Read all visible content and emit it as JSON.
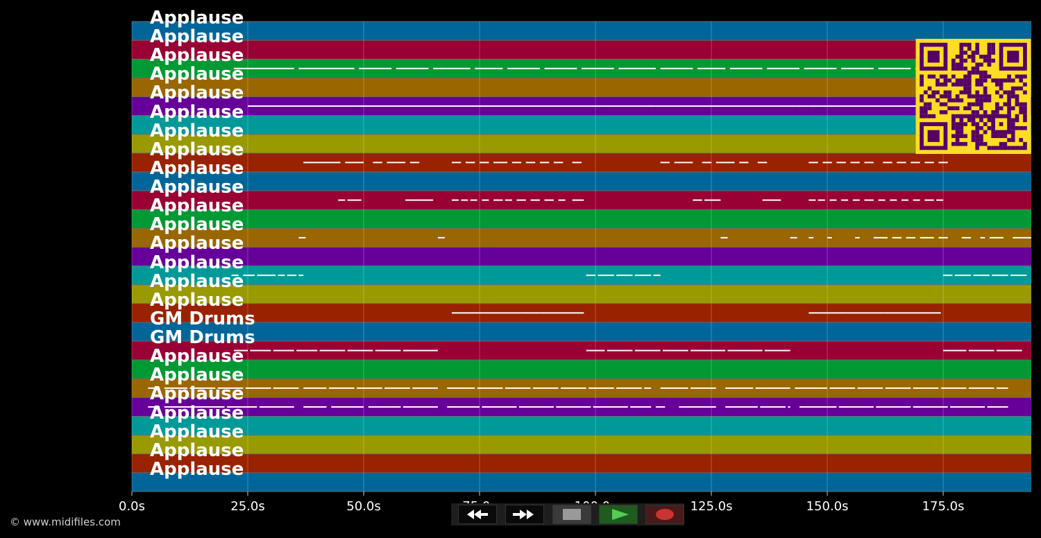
{
  "tracks": [
    {
      "label": "Applause",
      "color": "#006699"
    },
    {
      "label": "Applause",
      "color": "#990033"
    },
    {
      "label": "Applause",
      "color": "#009933"
    },
    {
      "label": "Applause",
      "color": "#996600"
    },
    {
      "label": "Applause",
      "color": "#660099"
    },
    {
      "label": "Applause",
      "color": "#009999"
    },
    {
      "label": "Applause",
      "color": "#999900"
    },
    {
      "label": "Applause",
      "color": "#992200"
    },
    {
      "label": "Applause",
      "color": "#006699"
    },
    {
      "label": "Applause",
      "color": "#990033"
    },
    {
      "label": "Applause",
      "color": "#009933"
    },
    {
      "label": "Applause",
      "color": "#996600"
    },
    {
      "label": "Applause",
      "color": "#660099"
    },
    {
      "label": "Applause",
      "color": "#009999"
    },
    {
      "label": "Applause",
      "color": "#999900"
    },
    {
      "label": "Applause",
      "color": "#992200"
    },
    {
      "label": "GM Drums",
      "color": "#006699"
    },
    {
      "label": "GM Drums",
      "color": "#990033"
    },
    {
      "label": "Applause",
      "color": "#009933"
    },
    {
      "label": "Applause",
      "color": "#996600"
    },
    {
      "label": "Applause",
      "color": "#660099"
    },
    {
      "label": "Applause",
      "color": "#009999"
    },
    {
      "label": "Applause",
      "color": "#999900"
    },
    {
      "label": "Applause",
      "color": "#992200"
    },
    {
      "label": "Applause",
      "color": "#006699"
    }
  ],
  "time_axis": {
    "max_seconds": 194,
    "ticks": [
      {
        "value": 0,
        "label": "0.0s"
      },
      {
        "value": 25,
        "label": "25.0s"
      },
      {
        "value": 50,
        "label": "50.0s"
      },
      {
        "value": 75,
        "label": "75.0s"
      },
      {
        "value": 100,
        "label": "100.0s"
      },
      {
        "value": 125,
        "label": "125.0s"
      },
      {
        "value": 150,
        "label": "150.0s"
      },
      {
        "value": 175,
        "label": "175.0s"
      }
    ]
  },
  "notes": [
    {
      "track": 2,
      "segments": [
        [
          22,
          35
        ],
        [
          36,
          41
        ],
        [
          41,
          48
        ],
        [
          49,
          56
        ],
        [
          57,
          64
        ],
        [
          65,
          73
        ],
        [
          74,
          80
        ],
        [
          81,
          88
        ],
        [
          89,
          96
        ],
        [
          97,
          104
        ],
        [
          105,
          113
        ],
        [
          114,
          121
        ],
        [
          122,
          128
        ],
        [
          129,
          136
        ],
        [
          137,
          144
        ],
        [
          145,
          152
        ],
        [
          153,
          160
        ],
        [
          161,
          168
        ],
        [
          169,
          176
        ]
      ]
    },
    {
      "track": 4,
      "segments": [
        [
          25,
          66
        ],
        [
          66,
          69
        ],
        [
          69,
          98
        ],
        [
          98,
          113
        ],
        [
          113,
          143
        ],
        [
          143,
          146
        ],
        [
          146,
          178
        ]
      ]
    },
    {
      "track": 7,
      "segments": [
        [
          37,
          39
        ],
        [
          39,
          42
        ],
        [
          42,
          45
        ],
        [
          46,
          48
        ],
        [
          48,
          50
        ],
        [
          52,
          54
        ],
        [
          55,
          57
        ],
        [
          57,
          59
        ],
        [
          60,
          62
        ],
        [
          69,
          71
        ],
        [
          72,
          74
        ],
        [
          75,
          77
        ],
        [
          78,
          81
        ],
        [
          82,
          84
        ],
        [
          85,
          87
        ],
        [
          88,
          90
        ],
        [
          91,
          93
        ],
        [
          95,
          97
        ],
        [
          114,
          116
        ],
        [
          117,
          119
        ],
        [
          119,
          121
        ],
        [
          123,
          125
        ],
        [
          126,
          128
        ],
        [
          128,
          130
        ],
        [
          131,
          133
        ],
        [
          135,
          137
        ],
        [
          146,
          148
        ],
        [
          149,
          151
        ],
        [
          152,
          154
        ],
        [
          155,
          157
        ],
        [
          158,
          160
        ],
        [
          162,
          164
        ],
        [
          165,
          167
        ],
        [
          168,
          170
        ],
        [
          171,
          173
        ],
        [
          174,
          176
        ]
      ]
    },
    {
      "track": 9,
      "segments": [
        [
          44.5,
          46
        ],
        [
          46.5,
          49.5
        ],
        [
          59,
          61
        ],
        [
          61,
          65
        ],
        [
          69,
          70.5
        ],
        [
          71,
          72.5
        ],
        [
          73,
          74.5
        ],
        [
          75.5,
          77
        ],
        [
          78,
          80
        ],
        [
          80.5,
          82
        ],
        [
          83,
          85
        ],
        [
          86,
          88
        ],
        [
          89,
          91
        ],
        [
          92,
          93.5
        ],
        [
          95,
          97.5
        ],
        [
          121,
          123
        ],
        [
          123.5,
          127
        ],
        [
          136,
          140
        ],
        [
          146,
          147.5
        ],
        [
          148,
          149.5
        ],
        [
          150.5,
          152
        ],
        [
          153,
          154.5
        ],
        [
          155.5,
          157
        ],
        [
          158,
          160
        ],
        [
          161,
          162.5
        ],
        [
          163.5,
          165
        ],
        [
          166,
          167.5
        ],
        [
          168.5,
          170
        ],
        [
          171,
          173
        ],
        [
          173.5,
          175
        ]
      ]
    },
    {
      "track": 11,
      "segments": [
        [
          36,
          37.5
        ],
        [
          66,
          67.5
        ],
        [
          127,
          128.5
        ],
        [
          142,
          143.5
        ],
        [
          146,
          147
        ],
        [
          150,
          151
        ],
        [
          156,
          157
        ],
        [
          160,
          163
        ],
        [
          164,
          166
        ],
        [
          167,
          169
        ],
        [
          170,
          173
        ],
        [
          174,
          176
        ],
        [
          179,
          181
        ],
        [
          183,
          184
        ],
        [
          185,
          188
        ],
        [
          190,
          194
        ]
      ]
    },
    {
      "track": 13,
      "segments": [
        [
          21.5,
          23
        ],
        [
          24,
          26.5
        ],
        [
          27,
          31
        ],
        [
          31.5,
          33
        ],
        [
          33.5,
          35.5
        ],
        [
          36,
          37
        ],
        [
          98,
          100
        ],
        [
          100.5,
          104
        ],
        [
          104.5,
          108
        ],
        [
          108.5,
          112
        ],
        [
          112.5,
          114
        ],
        [
          175,
          177
        ],
        [
          177.5,
          181
        ],
        [
          181.5,
          185
        ],
        [
          185.5,
          189
        ],
        [
          189.5,
          193
        ]
      ]
    },
    {
      "track": 15,
      "segments": [
        [
          69,
          72
        ],
        [
          72,
          76
        ],
        [
          76,
          80
        ],
        [
          80,
          84
        ],
        [
          84,
          88
        ],
        [
          88,
          92
        ],
        [
          92,
          97.5
        ],
        [
          146,
          150
        ],
        [
          150,
          154
        ],
        [
          154,
          158
        ],
        [
          158,
          162
        ],
        [
          162,
          166
        ],
        [
          166,
          170
        ],
        [
          170,
          174.5
        ]
      ]
    },
    {
      "track": 17,
      "segments": [
        [
          22,
          25
        ],
        [
          25.5,
          30
        ],
        [
          30.5,
          35
        ],
        [
          35.5,
          40
        ],
        [
          40.5,
          46
        ],
        [
          46.5,
          52
        ],
        [
          52.5,
          58
        ],
        [
          58.5,
          66
        ],
        [
          98,
          102
        ],
        [
          102.5,
          108
        ],
        [
          108.5,
          114
        ],
        [
          114.5,
          120
        ],
        [
          120.5,
          128
        ],
        [
          128.5,
          136
        ],
        [
          136.5,
          142
        ],
        [
          175,
          180
        ],
        [
          180.5,
          186
        ],
        [
          186.5,
          192
        ]
      ]
    },
    {
      "track": 19,
      "segments": [
        [
          3.5,
          6
        ],
        [
          7,
          12
        ],
        [
          12.5,
          18
        ],
        [
          18.5,
          24
        ],
        [
          24.5,
          30
        ],
        [
          30.5,
          36
        ],
        [
          37,
          42
        ],
        [
          42.5,
          48
        ],
        [
          48.5,
          54
        ],
        [
          54.5,
          60
        ],
        [
          60.5,
          66
        ],
        [
          68,
          74
        ],
        [
          74.5,
          80
        ],
        [
          80.5,
          86
        ],
        [
          86.5,
          92
        ],
        [
          92.5,
          98
        ],
        [
          98.5,
          104
        ],
        [
          104.5,
          110
        ],
        [
          110.5,
          112
        ],
        [
          114,
          120
        ],
        [
          120.5,
          126
        ],
        [
          128,
          134
        ],
        [
          134.5,
          142
        ],
        [
          143,
          150
        ],
        [
          150.5,
          156
        ],
        [
          156.5,
          162
        ],
        [
          162.5,
          168
        ],
        [
          168.5,
          174
        ],
        [
          174.5,
          180
        ],
        [
          180.5,
          186
        ],
        [
          186.5,
          189
        ]
      ]
    },
    {
      "track": 20,
      "segments": [
        [
          3.5,
          6
        ],
        [
          7,
          13
        ],
        [
          13.5,
          20
        ],
        [
          20.5,
          27
        ],
        [
          27.5,
          35
        ],
        [
          37,
          42
        ],
        [
          43,
          50
        ],
        [
          51,
          58
        ],
        [
          58.5,
          66
        ],
        [
          68,
          75
        ],
        [
          75.5,
          83
        ],
        [
          83.5,
          91
        ],
        [
          91.5,
          99
        ],
        [
          99.5,
          107
        ],
        [
          107.5,
          112
        ],
        [
          113,
          115
        ],
        [
          118,
          126
        ],
        [
          128,
          135
        ],
        [
          135.5,
          141
        ],
        [
          141.5,
          142
        ],
        [
          144,
          152
        ],
        [
          152.5,
          160
        ],
        [
          160.5,
          168
        ],
        [
          168.5,
          176
        ],
        [
          176.5,
          184
        ],
        [
          184.5,
          189
        ]
      ]
    }
  ],
  "copyright": "© www.midifiles.com",
  "transport": [
    {
      "name": "rewind-button",
      "icon": "rewind-icon"
    },
    {
      "name": "fast-forward-button",
      "icon": "fast-forward-icon"
    },
    {
      "name": "stop-button",
      "icon": "stop-icon"
    },
    {
      "name": "play-button",
      "icon": "play-icon"
    },
    {
      "name": "record-button",
      "icon": "record-icon"
    }
  ],
  "qr_colors": {
    "fg": "#550066",
    "bg": "#ffdd22"
  }
}
